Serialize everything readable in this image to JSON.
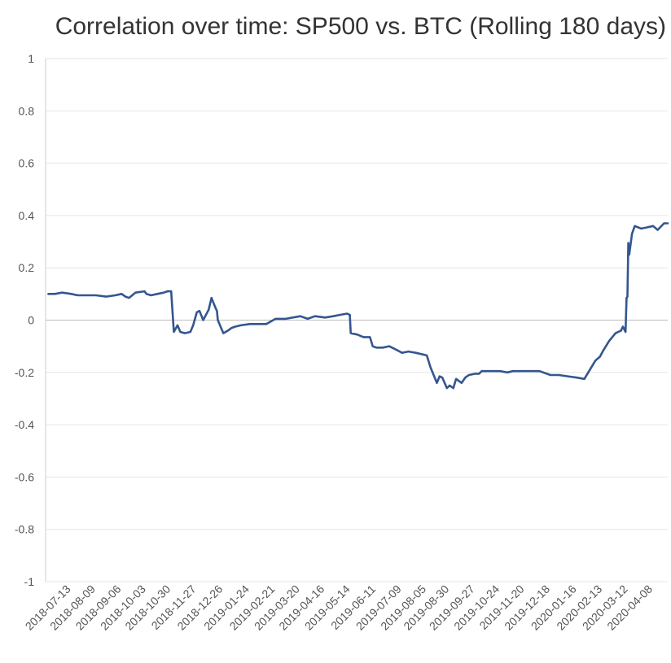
{
  "chart_data": {
    "type": "line",
    "title": "Correlation over time: SP500 vs. BTC (Rolling 180 days)",
    "xlabel": "",
    "ylabel": "",
    "ylim": [
      -1,
      1
    ],
    "yticks": [
      "1",
      "0.8",
      "0.6",
      "0.4",
      "0.2",
      "0",
      "-0.2",
      "-0.4",
      "-0.6",
      "-0.8",
      "-1"
    ],
    "xlim": [
      "2018-06-15",
      "2020-04-24"
    ],
    "xticks": [
      "2018-07-13",
      "2018-08-09",
      "2018-09-06",
      "2018-10-03",
      "2018-10-30",
      "2018-11-27",
      "2018-12-26",
      "2019-01-24",
      "2019-02-21",
      "2019-03-20",
      "2019-04-16",
      "2019-05-14",
      "2019-06-11",
      "2019-07-09",
      "2019-08-05",
      "2019-08-30",
      "2019-09-27",
      "2019-10-24",
      "2019-11-20",
      "2019-12-18",
      "2020-01-16",
      "2020-02-13",
      "2020-03-12",
      "2020-04-08"
    ],
    "grid": true,
    "legend": "none",
    "color": "#34568f",
    "series": [
      {
        "x": [
          "2018-06-18",
          "2018-06-25",
          "2018-07-03",
          "2018-07-13",
          "2018-07-20",
          "2018-07-30",
          "2018-08-09",
          "2018-08-20",
          "2018-08-30",
          "2018-09-06",
          "2018-09-10",
          "2018-09-14",
          "2018-09-21",
          "2018-10-01",
          "2018-10-03",
          "2018-10-08",
          "2018-10-15",
          "2018-10-22",
          "2018-10-26",
          "2018-10-30",
          "2018-11-02",
          "2018-11-06",
          "2018-11-09",
          "2018-11-14",
          "2018-11-20",
          "2018-11-23",
          "2018-11-27",
          "2018-11-30",
          "2018-12-04",
          "2018-12-07",
          "2018-12-10",
          "2018-12-13",
          "2018-12-17",
          "2018-12-19",
          "2018-12-20",
          "2018-12-26",
          "2018-12-31",
          "2019-01-04",
          "2019-01-08",
          "2019-01-14",
          "2019-01-24",
          "2019-02-01",
          "2019-02-11",
          "2019-02-21",
          "2019-03-04",
          "2019-03-20",
          "2019-03-28",
          "2019-04-05",
          "2019-04-16",
          "2019-04-25",
          "2019-05-02",
          "2019-05-10",
          "2019-05-13",
          "2019-05-14",
          "2019-05-21",
          "2019-05-28",
          "2019-06-04",
          "2019-06-07",
          "2019-06-11",
          "2019-06-18",
          "2019-06-25",
          "2019-07-01",
          "2019-07-09",
          "2019-07-16",
          "2019-07-24",
          "2019-08-05",
          "2019-08-09",
          "2019-08-16",
          "2019-08-19",
          "2019-08-22",
          "2019-08-27",
          "2019-08-30",
          "2019-09-03",
          "2019-09-06",
          "2019-09-12",
          "2019-09-16",
          "2019-09-20",
          "2019-09-27",
          "2019-10-01",
          "2019-10-04",
          "2019-10-10",
          "2019-10-17",
          "2019-10-24",
          "2019-11-01",
          "2019-11-07",
          "2019-11-20",
          "2019-11-29",
          "2019-12-06",
          "2019-12-18",
          "2019-12-27",
          "2020-01-06",
          "2020-01-16",
          "2020-01-24",
          "2020-02-05",
          "2020-02-10",
          "2020-02-13",
          "2020-02-20",
          "2020-02-27",
          "2020-03-04",
          "2020-03-06",
          "2020-03-09",
          "2020-03-10",
          "2020-03-11",
          "2020-03-12",
          "2020-03-13",
          "2020-03-16",
          "2020-03-19",
          "2020-03-26",
          "2020-04-02",
          "2020-04-08",
          "2020-04-13",
          "2020-04-20",
          "2020-04-24"
        ],
        "y": [
          0.1,
          0.1,
          0.105,
          0.1,
          0.095,
          0.095,
          0.095,
          0.09,
          0.095,
          0.1,
          0.09,
          0.085,
          0.105,
          0.11,
          0.1,
          0.095,
          0.1,
          0.105,
          0.11,
          0.11,
          -0.045,
          -0.02,
          -0.045,
          -0.05,
          -0.045,
          -0.02,
          0.03,
          0.035,
          0.0,
          0.02,
          0.04,
          0.085,
          0.05,
          0.035,
          0.0,
          -0.05,
          -0.04,
          -0.03,
          -0.025,
          -0.02,
          -0.015,
          -0.015,
          -0.015,
          0.005,
          0.005,
          0.015,
          0.005,
          0.015,
          0.01,
          0.015,
          0.02,
          0.025,
          0.02,
          -0.05,
          -0.055,
          -0.065,
          -0.065,
          -0.1,
          -0.105,
          -0.105,
          -0.1,
          -0.11,
          -0.125,
          -0.12,
          -0.125,
          -0.135,
          -0.18,
          -0.24,
          -0.215,
          -0.22,
          -0.26,
          -0.25,
          -0.26,
          -0.225,
          -0.24,
          -0.22,
          -0.21,
          -0.205,
          -0.205,
          -0.195,
          -0.195,
          -0.195,
          -0.195,
          -0.2,
          -0.195,
          -0.195,
          -0.195,
          -0.195,
          -0.21,
          -0.21,
          -0.215,
          -0.22,
          -0.225,
          -0.155,
          -0.14,
          -0.12,
          -0.08,
          -0.05,
          -0.04,
          -0.025,
          -0.045,
          0.085,
          0.09,
          0.295,
          0.25,
          0.33,
          0.36,
          0.35,
          0.355,
          0.36,
          0.345,
          0.37,
          0.37
        ]
      }
    ]
  }
}
